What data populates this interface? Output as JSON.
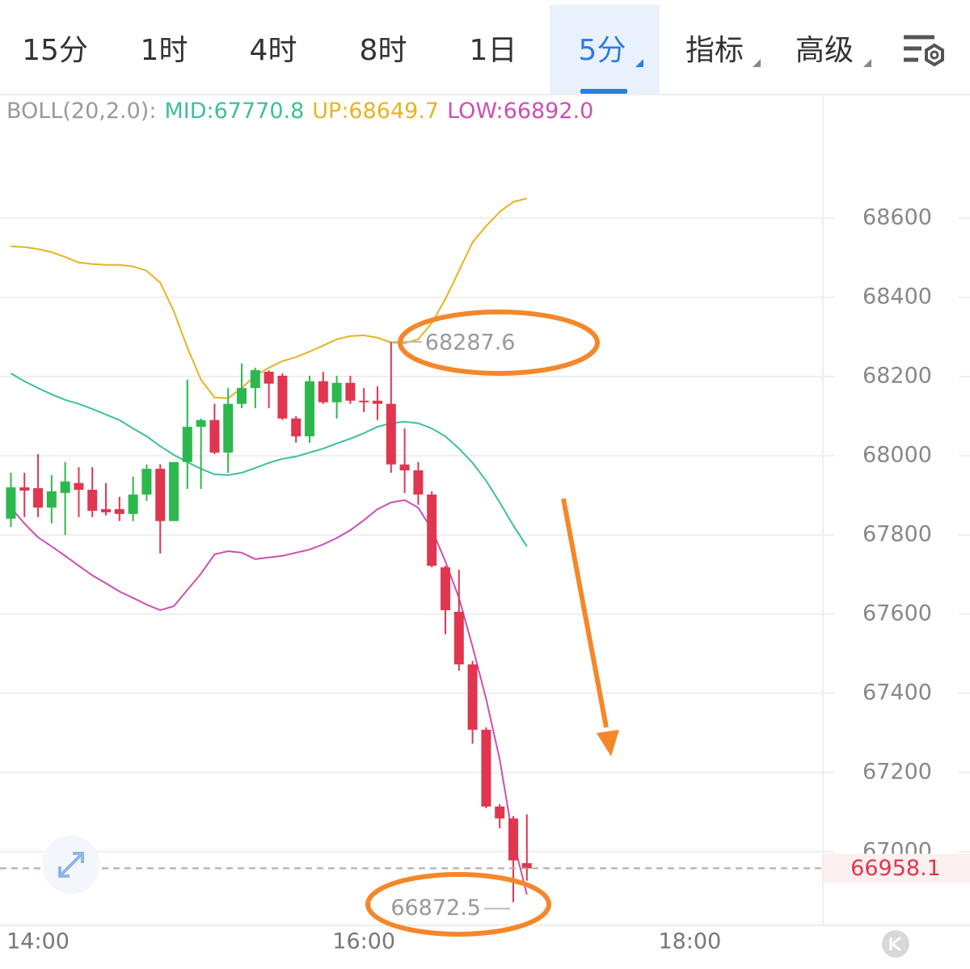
{
  "tabs": [
    "15分",
    "1时",
    "4时",
    "8时",
    "1日",
    "5分",
    "指标",
    "高级"
  ],
  "selected_tab": 5,
  "chart_data": {
    "type": "candlestick",
    "legend": {
      "title": "BOLL(20,2.0):",
      "separator": ":"
    },
    "up_color": "#2db84d",
    "down_color": "#e0364f",
    "x": [
      830,
      835,
      840,
      845,
      850,
      855,
      860,
      865,
      870,
      875,
      880,
      885,
      890,
      895,
      900,
      905,
      910,
      915,
      920,
      925,
      930,
      935,
      940,
      945,
      950,
      955,
      960,
      965,
      970,
      975,
      980,
      985,
      990,
      995,
      1000,
      1005,
      1010,
      1015,
      1020
    ],
    "open": [
      67841,
      67920,
      67918,
      67869,
      67906,
      67931,
      67914,
      67865,
      67865,
      67853,
      67902,
      67967,
      67835,
      67984,
      68073,
      68090,
      68008,
      68131,
      68171,
      68212,
      68202,
      68094,
      68049,
      68188,
      68135,
      68184,
      68139,
      68139,
      68131,
      67978,
      67963,
      67902,
      67718,
      67606,
      67473,
      67308,
      67114,
      67084,
      66971
    ],
    "high": [
      67957,
      67957,
      68004,
      67951,
      67984,
      67971,
      67971,
      67931,
      67896,
      67947,
      67978,
      67978,
      67984,
      68192,
      68094,
      68131,
      68171,
      68233,
      68222,
      68216,
      68208,
      68100,
      68202,
      68212,
      68202,
      68202,
      68171,
      68175,
      68287.6,
      68069,
      67984,
      67910,
      67722,
      67712,
      67482,
      67314,
      67120,
      67090,
      67094
    ],
    "low": [
      67820,
      67845,
      67845,
      67829,
      67800,
      67845,
      67845,
      67849,
      67835,
      67835,
      67886,
      67753,
      67835,
      67916,
      67916,
      68004,
      67957,
      68120,
      68120,
      68120,
      68090,
      68033,
      68033,
      68131,
      68094,
      68131,
      68110,
      68090,
      67957,
      67906,
      67876,
      67718,
      67549,
      67457,
      67273,
      67110,
      67059,
      66872.5,
      66927
    ],
    "close": [
      67920,
      67912,
      67869,
      67910,
      67935,
      67914,
      67861,
      67857,
      67853,
      67902,
      67967,
      67835,
      67984,
      68073,
      68090,
      68008,
      68131,
      68171,
      68216,
      68182,
      68094,
      68049,
      68188,
      68135,
      68184,
      68139,
      68135,
      68131,
      67978,
      67963,
      67902,
      67722,
      67610,
      67473,
      67308,
      67114,
      67084,
      66978,
      66958.1
    ],
    "series": [
      {
        "name": "MID",
        "color": "#3dbf9c",
        "values": [
          68208,
          68188,
          68171,
          68155,
          68141,
          68131,
          68118,
          68104,
          68090,
          68069,
          68049,
          68024,
          68002,
          67984,
          67967,
          67953,
          67951,
          67957,
          67969,
          67982,
          67992,
          67998,
          68008,
          68018,
          68031,
          68043,
          68057,
          68073,
          68082,
          68086,
          68082,
          68069,
          68049,
          68018,
          67982,
          67937,
          67882,
          67824,
          67770.8
        ]
      },
      {
        "name": "UP",
        "color": "#e6b422",
        "values": [
          68529,
          68527,
          68522,
          68514,
          68502,
          68488,
          68484,
          68482,
          68482,
          68478,
          68467,
          68437,
          68365,
          68273,
          68192,
          68147,
          68145,
          68171,
          68202,
          68222,
          68239,
          68249,
          68263,
          68278,
          68294,
          68302,
          68304,
          68298,
          68286,
          68284,
          68294,
          68335,
          68396,
          68467,
          68539,
          68580,
          68616,
          68641,
          68649.7
        ]
      },
      {
        "name": "LOW",
        "color": "#cc4fb3",
        "legend_value": "66892.0",
        "values": [
          67869,
          67829,
          67794,
          67771,
          67747,
          67722,
          67698,
          67678,
          67657,
          67641,
          67624,
          67610,
          67620,
          67661,
          67702,
          67751,
          67759,
          67755,
          67739,
          67743,
          67747,
          67755,
          67763,
          67776,
          67792,
          67812,
          67837,
          67865,
          67882,
          67888,
          67869,
          67814,
          67733,
          67641,
          67518,
          67386,
          67233,
          67029,
          66892.0
        ]
      }
    ],
    "xlim": [
      826,
      1129
    ],
    "xticks": [
      {
        "value": 840,
        "label": "14:00"
      },
      {
        "value": 960,
        "label": "16:00"
      },
      {
        "value": 1080,
        "label": "18:00"
      }
    ],
    "ylim": [
      66814,
      68910
    ],
    "yticks": [
      67000,
      67200,
      67400,
      67600,
      67800,
      68000,
      68200,
      68400,
      68600
    ],
    "grid": true
  }
}
